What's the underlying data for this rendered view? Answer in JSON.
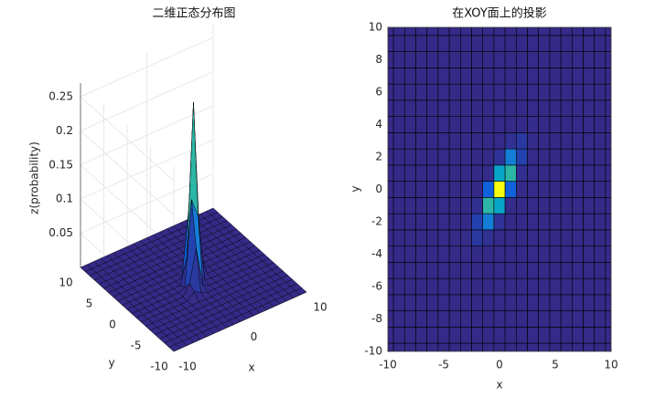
{
  "chart_data": [
    {
      "type": "surface3d",
      "title": "二维正态分布图",
      "xlabel": "x",
      "ylabel": "y",
      "zlabel": "z(probability)",
      "xlim": [
        -10,
        10
      ],
      "ylim": [
        -10,
        10
      ],
      "zlim": [
        0,
        0.27
      ],
      "xticks": [
        -10,
        0,
        10
      ],
      "yticks": [
        -10,
        -5,
        0,
        5,
        10
      ],
      "zticks": [
        0.05,
        0.1,
        0.15,
        0.2,
        0.25
      ],
      "grid": true,
      "colormap": [
        "#352a87",
        "#0f5cdd",
        "#1481d6",
        "#06a4ca",
        "#2eb7a4",
        "#87bf77",
        "#d1bb59",
        "#fec832",
        "#f9fb0e"
      ],
      "edge_color": "#000000",
      "x": [
        -10,
        -9,
        -8,
        -7,
        -6,
        -5,
        -4,
        -3,
        -2,
        -1,
        0,
        1,
        2,
        3,
        4,
        5,
        6,
        7,
        8,
        9,
        10
      ],
      "y": [
        -10,
        -9,
        -8,
        -7,
        -6,
        -5,
        -4,
        -3,
        -2,
        -1,
        0,
        1,
        2,
        3,
        4,
        5,
        6,
        7,
        8,
        9,
        10
      ],
      "z": [
        [
          0,
          0,
          0,
          0,
          0,
          0,
          0,
          0,
          0,
          0,
          0,
          0,
          0,
          0,
          0,
          0,
          0,
          0,
          0,
          0,
          0
        ],
        [
          0,
          0,
          0,
          0,
          0,
          0,
          0,
          0,
          0,
          0,
          0,
          0,
          0,
          0,
          0,
          0,
          0,
          0,
          0,
          0,
          0
        ],
        [
          0,
          0,
          0,
          0,
          0,
          0,
          0,
          0,
          0,
          0,
          0,
          0,
          0,
          0,
          0,
          0,
          0,
          0,
          0,
          0,
          0
        ],
        [
          0,
          0,
          0,
          0,
          0,
          0,
          0,
          0,
          0,
          0,
          0,
          0,
          0,
          0,
          0,
          0,
          0,
          0,
          0,
          0,
          0
        ],
        [
          0,
          0,
          0,
          0,
          0,
          0,
          0,
          0,
          0,
          0,
          0,
          0,
          0,
          0,
          0,
          0,
          0,
          0,
          0,
          0,
          0
        ],
        [
          0,
          0,
          0,
          0,
          0,
          0,
          0,
          0,
          0,
          0,
          0,
          0,
          0,
          0,
          0,
          0,
          0,
          0,
          0,
          0,
          0
        ],
        [
          0,
          0,
          0,
          0,
          0,
          0,
          0,
          0.0004,
          0.0009,
          0,
          0,
          0,
          0,
          0,
          0,
          0,
          0,
          0,
          0,
          0,
          0
        ],
        [
          0,
          0,
          0,
          0,
          0,
          0,
          0,
          0.0004,
          0.0096,
          0.0044,
          0,
          0,
          0,
          0,
          0,
          0,
          0,
          0,
          0,
          0,
          0
        ],
        [
          0,
          0,
          0,
          0,
          0,
          0,
          0,
          0.0001,
          0.0153,
          0.0626,
          0.0055,
          0,
          0,
          0,
          0,
          0,
          0,
          0,
          0,
          0,
          0
        ],
        [
          0,
          0,
          0,
          0,
          0,
          0,
          0,
          0,
          0.0035,
          0.128,
          0.099,
          0.0016,
          0,
          0,
          0,
          0,
          0,
          0,
          0,
          0,
          0
        ],
        [
          0,
          0,
          0,
          0,
          0,
          0,
          0,
          0,
          0.0001,
          0.038,
          0.26,
          0.038,
          0.0001,
          0,
          0,
          0,
          0,
          0,
          0,
          0,
          0
        ],
        [
          0,
          0,
          0,
          0,
          0,
          0,
          0,
          0,
          0,
          0.0016,
          0.099,
          0.128,
          0.0035,
          0,
          0,
          0,
          0,
          0,
          0,
          0,
          0
        ],
        [
          0,
          0,
          0,
          0,
          0,
          0,
          0,
          0,
          0,
          0,
          0.0055,
          0.0626,
          0.0153,
          0.0001,
          0,
          0,
          0,
          0,
          0,
          0,
          0
        ],
        [
          0,
          0,
          0,
          0,
          0,
          0,
          0,
          0,
          0,
          0,
          0,
          0.0044,
          0.0096,
          0.0004,
          0,
          0,
          0,
          0,
          0,
          0,
          0
        ],
        [
          0,
          0,
          0,
          0,
          0,
          0,
          0,
          0,
          0,
          0,
          0,
          0,
          0.0009,
          0.0004,
          0,
          0,
          0,
          0,
          0,
          0,
          0
        ],
        [
          0,
          0,
          0,
          0,
          0,
          0,
          0,
          0,
          0,
          0,
          0,
          0,
          0,
          0,
          0,
          0,
          0,
          0,
          0,
          0,
          0
        ],
        [
          0,
          0,
          0,
          0,
          0,
          0,
          0,
          0,
          0,
          0,
          0,
          0,
          0,
          0,
          0,
          0,
          0,
          0,
          0,
          0,
          0
        ],
        [
          0,
          0,
          0,
          0,
          0,
          0,
          0,
          0,
          0,
          0,
          0,
          0,
          0,
          0,
          0,
          0,
          0,
          0,
          0,
          0,
          0
        ],
        [
          0,
          0,
          0,
          0,
          0,
          0,
          0,
          0,
          0,
          0,
          0,
          0,
          0,
          0,
          0,
          0,
          0,
          0,
          0,
          0,
          0
        ],
        [
          0,
          0,
          0,
          0,
          0,
          0,
          0,
          0,
          0,
          0,
          0,
          0,
          0,
          0,
          0,
          0,
          0,
          0,
          0,
          0,
          0
        ],
        [
          0,
          0,
          0,
          0,
          0,
          0,
          0,
          0,
          0,
          0,
          0,
          0,
          0,
          0,
          0,
          0,
          0,
          0,
          0,
          0,
          0
        ]
      ]
    },
    {
      "type": "heatmap",
      "title": "在XOY面上的投影",
      "xlabel": "x",
      "ylabel": "y",
      "xlim": [
        -10,
        10
      ],
      "ylim": [
        -10,
        10
      ],
      "xticks": [
        -10,
        -5,
        0,
        5,
        10
      ],
      "yticks": [
        -10,
        -8,
        -6,
        -4,
        -2,
        0,
        2,
        4,
        6,
        8,
        10
      ],
      "colormap": [
        "#352a87",
        "#0f5cdd",
        "#1481d6",
        "#06a4ca",
        "#2eb7a4",
        "#87bf77",
        "#d1bb59",
        "#fec832",
        "#f9fb0e"
      ],
      "edge_color": "#000000",
      "x": [
        -10,
        -9,
        -8,
        -7,
        -6,
        -5,
        -4,
        -3,
        -2,
        -1,
        0,
        1,
        2,
        3,
        4,
        5,
        6,
        7,
        8,
        9,
        10
      ],
      "y": [
        -10,
        -9,
        -8,
        -7,
        -6,
        -5,
        -4,
        -3,
        -2,
        -1,
        0,
        1,
        2,
        3,
        4,
        5,
        6,
        7,
        8,
        9,
        10
      ],
      "z": [
        [
          0,
          0,
          0,
          0,
          0,
          0,
          0,
          0,
          0,
          0,
          0,
          0,
          0,
          0,
          0,
          0,
          0,
          0,
          0,
          0,
          0
        ],
        [
          0,
          0,
          0,
          0,
          0,
          0,
          0,
          0,
          0,
          0,
          0,
          0,
          0,
          0,
          0,
          0,
          0,
          0,
          0,
          0,
          0
        ],
        [
          0,
          0,
          0,
          0,
          0,
          0,
          0,
          0,
          0,
          0,
          0,
          0,
          0,
          0,
          0,
          0,
          0,
          0,
          0,
          0,
          0
        ],
        [
          0,
          0,
          0,
          0,
          0,
          0,
          0,
          0,
          0,
          0,
          0,
          0,
          0,
          0,
          0,
          0,
          0,
          0,
          0,
          0,
          0
        ],
        [
          0,
          0,
          0,
          0,
          0,
          0,
          0,
          0,
          0,
          0,
          0,
          0,
          0,
          0,
          0,
          0,
          0,
          0,
          0,
          0,
          0
        ],
        [
          0,
          0,
          0,
          0,
          0,
          0,
          0,
          0,
          0,
          0,
          0,
          0,
          0,
          0,
          0,
          0,
          0,
          0,
          0,
          0,
          0
        ],
        [
          0,
          0,
          0,
          0,
          0,
          0,
          0,
          0.0004,
          0.0009,
          0,
          0,
          0,
          0,
          0,
          0,
          0,
          0,
          0,
          0,
          0,
          0
        ],
        [
          0,
          0,
          0,
          0,
          0,
          0,
          0,
          0.0004,
          0.0096,
          0.0044,
          0,
          0,
          0,
          0,
          0,
          0,
          0,
          0,
          0,
          0,
          0
        ],
        [
          0,
          0,
          0,
          0,
          0,
          0,
          0,
          0.0001,
          0.0153,
          0.0626,
          0.0055,
          0,
          0,
          0,
          0,
          0,
          0,
          0,
          0,
          0,
          0
        ],
        [
          0,
          0,
          0,
          0,
          0,
          0,
          0,
          0,
          0.0035,
          0.128,
          0.099,
          0.0016,
          0,
          0,
          0,
          0,
          0,
          0,
          0,
          0,
          0
        ],
        [
          0,
          0,
          0,
          0,
          0,
          0,
          0,
          0,
          0.0001,
          0.038,
          0.26,
          0.038,
          0.0001,
          0,
          0,
          0,
          0,
          0,
          0,
          0,
          0
        ],
        [
          0,
          0,
          0,
          0,
          0,
          0,
          0,
          0,
          0,
          0.0016,
          0.099,
          0.128,
          0.0035,
          0,
          0,
          0,
          0,
          0,
          0,
          0,
          0
        ],
        [
          0,
          0,
          0,
          0,
          0,
          0,
          0,
          0,
          0,
          0,
          0.0055,
          0.0626,
          0.0153,
          0.0001,
          0,
          0,
          0,
          0,
          0,
          0,
          0
        ],
        [
          0,
          0,
          0,
          0,
          0,
          0,
          0,
          0,
          0,
          0,
          0,
          0.0044,
          0.0096,
          0.0004,
          0,
          0,
          0,
          0,
          0,
          0,
          0
        ],
        [
          0,
          0,
          0,
          0,
          0,
          0,
          0,
          0,
          0,
          0,
          0,
          0,
          0.0009,
          0.0004,
          0,
          0,
          0,
          0,
          0,
          0,
          0
        ],
        [
          0,
          0,
          0,
          0,
          0,
          0,
          0,
          0,
          0,
          0,
          0,
          0,
          0,
          0,
          0,
          0,
          0,
          0,
          0,
          0,
          0
        ],
        [
          0,
          0,
          0,
          0,
          0,
          0,
          0,
          0,
          0,
          0,
          0,
          0,
          0,
          0,
          0,
          0,
          0,
          0,
          0,
          0,
          0
        ],
        [
          0,
          0,
          0,
          0,
          0,
          0,
          0,
          0,
          0,
          0,
          0,
          0,
          0,
          0,
          0,
          0,
          0,
          0,
          0,
          0,
          0
        ],
        [
          0,
          0,
          0,
          0,
          0,
          0,
          0,
          0,
          0,
          0,
          0,
          0,
          0,
          0,
          0,
          0,
          0,
          0,
          0,
          0,
          0
        ],
        [
          0,
          0,
          0,
          0,
          0,
          0,
          0,
          0,
          0,
          0,
          0,
          0,
          0,
          0,
          0,
          0,
          0,
          0,
          0,
          0,
          0
        ],
        [
          0,
          0,
          0,
          0,
          0,
          0,
          0,
          0,
          0,
          0,
          0,
          0,
          0,
          0,
          0,
          0,
          0,
          0,
          0,
          0,
          0
        ]
      ]
    }
  ]
}
